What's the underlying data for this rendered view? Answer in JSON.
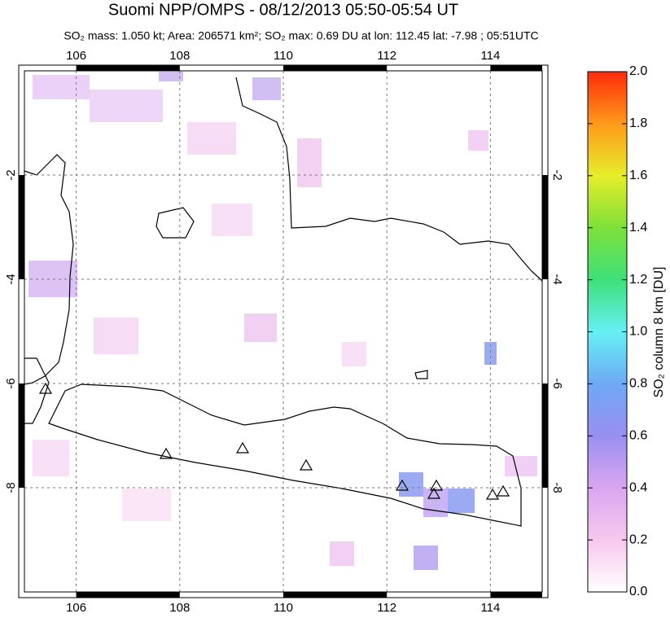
{
  "map": {
    "title": "Suomi NPP/OMPS - 08/12/2013 05:50-05:54 UT",
    "subtitle": "SO₂ mass: 1.050 kt; Area: 206571 km²; SO₂ max: 0.69 DU at lon: 112.45 lat: -7.98 ; 05:51UTC",
    "xlim": [
      105,
      115
    ],
    "ylim": [
      -10,
      0
    ],
    "xticks": [
      106,
      108,
      110,
      112,
      114
    ],
    "yticks": [
      -2,
      -4,
      -6,
      -8
    ],
    "grid": true,
    "colorbar": {
      "label": "SO₂ column 8 km [DU]",
      "lim": [
        0,
        2
      ],
      "ticks": [
        {
          "value": 0,
          "label": "0.0"
        },
        0.2,
        0.4,
        0.6,
        0.8,
        {
          "value": 1,
          "label": "1.0"
        },
        1.2,
        1.4,
        1.6,
        1.8,
        {
          "value": 2,
          "label": "2.0"
        }
      ]
    }
  }
}
